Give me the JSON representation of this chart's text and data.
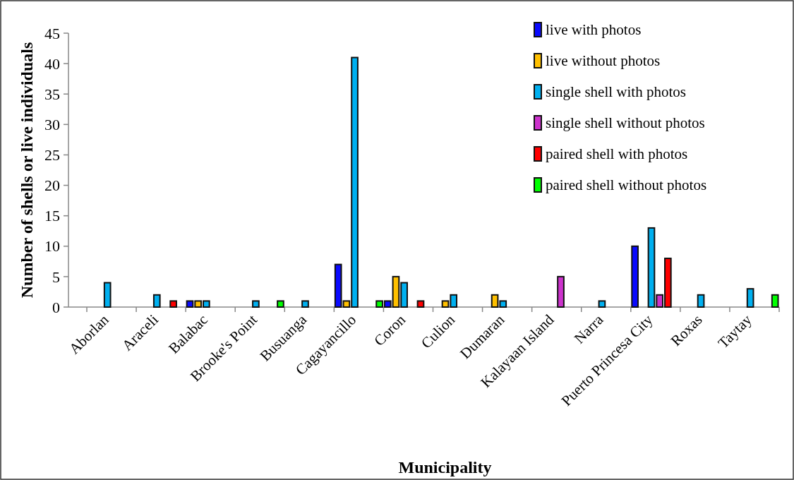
{
  "chart_data": {
    "type": "bar",
    "xlabel": "Municipality",
    "ylabel": "Number of shells or live individuals",
    "categories": [
      "Aborlan",
      "Araceli",
      "Balabac",
      "Brooke's Point",
      "Busuanga",
      "Cagayancillo",
      "Coron",
      "Culion",
      "Dumaran",
      "Kalayaan Island",
      "Narra",
      "Puerto Princesa City",
      "Roxas",
      "Taytay"
    ],
    "series": [
      {
        "name": "live with photos",
        "color": "#0a0aff",
        "values": [
          null,
          null,
          1,
          null,
          null,
          7,
          1,
          null,
          null,
          null,
          null,
          10,
          null,
          null
        ]
      },
      {
        "name": "live without photos",
        "color": "#ffc000",
        "values": [
          null,
          null,
          1,
          null,
          null,
          1,
          5,
          1,
          2,
          null,
          null,
          null,
          null,
          null
        ]
      },
      {
        "name": "single shell with photos",
        "color": "#00b0f0",
        "values": [
          4,
          2,
          1,
          1,
          1,
          41,
          4,
          2,
          1,
          null,
          1,
          13,
          2,
          3
        ]
      },
      {
        "name": "single shell without photos",
        "color": "#cc33cc",
        "values": [
          null,
          null,
          null,
          null,
          null,
          null,
          null,
          null,
          null,
          5,
          null,
          2,
          null,
          null
        ]
      },
      {
        "name": "paired shell with photos",
        "color": "#ff0000",
        "values": [
          null,
          1,
          null,
          null,
          null,
          null,
          1,
          null,
          null,
          null,
          null,
          8,
          null,
          null
        ]
      },
      {
        "name": "paired shell without photos",
        "color": "#00ff00",
        "values": [
          null,
          null,
          null,
          1,
          null,
          1,
          null,
          null,
          null,
          null,
          null,
          null,
          null,
          2
        ]
      }
    ],
    "ylim": [
      0,
      45
    ],
    "yticks": [
      0,
      5,
      10,
      15,
      20,
      25,
      30,
      35,
      40,
      45
    ],
    "grid": false,
    "legend": "top right"
  }
}
